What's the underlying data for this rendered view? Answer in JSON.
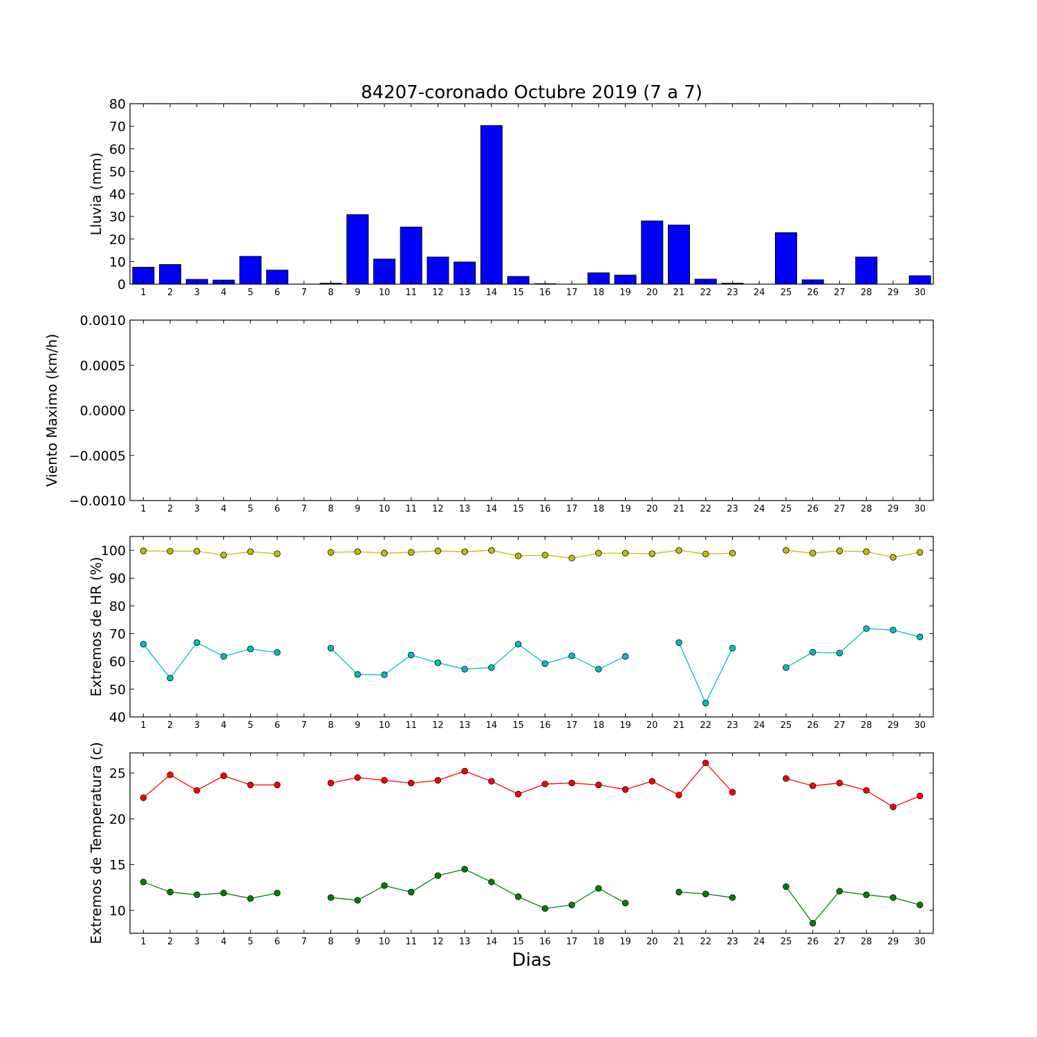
{
  "title": "84207-coronado Octubre 2019  (7 a 7)",
  "xlabel": "Dias",
  "chart_data": [
    {
      "type": "bar",
      "ylabel": "Lluvia (mm)",
      "ylim": [
        0,
        80
      ],
      "yticks": [
        "0",
        "10",
        "20",
        "30",
        "40",
        "50",
        "60",
        "70",
        "80"
      ],
      "categories": [
        1,
        2,
        3,
        4,
        5,
        6,
        7,
        8,
        9,
        10,
        11,
        12,
        13,
        14,
        15,
        16,
        17,
        18,
        19,
        20,
        21,
        22,
        23,
        24,
        25,
        26,
        27,
        28,
        29,
        30
      ],
      "values": [
        7.5,
        8.7,
        2.1,
        1.8,
        12.3,
        6.2,
        0,
        0.4,
        30.8,
        11.1,
        25.3,
        12,
        9.8,
        70.3,
        3.4,
        0.2,
        0,
        5,
        4,
        28,
        26.2,
        2.2,
        0.4,
        0,
        22.8,
        1.9,
        0,
        12,
        0,
        3.7
      ],
      "color": "#0000ff"
    },
    {
      "type": "line",
      "ylabel": "Viento Maximo (km/h)",
      "ylim": [
        -0.001,
        0.001
      ],
      "yticks": [
        "0.0010",
        "0.0005",
        "0.0000",
        "−0.0005",
        "−0.0010"
      ],
      "categories": [
        1,
        2,
        3,
        4,
        5,
        6,
        7,
        8,
        9,
        10,
        11,
        12,
        13,
        14,
        15,
        16,
        17,
        18,
        19,
        20,
        21,
        22,
        23,
        24,
        25,
        26,
        27,
        28,
        29,
        30
      ],
      "series": []
    },
    {
      "type": "line",
      "ylabel": "Extremos de HR (%)",
      "ylim": [
        40,
        105
      ],
      "yticks": [
        "40",
        "50",
        "60",
        "70",
        "80",
        "90",
        "100"
      ],
      "categories": [
        1,
        2,
        3,
        4,
        5,
        6,
        7,
        8,
        9,
        10,
        11,
        12,
        13,
        14,
        15,
        16,
        17,
        18,
        19,
        20,
        21,
        22,
        23,
        24,
        25,
        26,
        27,
        28,
        29,
        30
      ],
      "series": [
        {
          "color": "#bfbf00",
          "values": [
            99.8,
            99.7,
            99.7,
            98.3,
            99.5,
            98.8,
            null,
            99.3,
            99.5,
            99.0,
            99.3,
            99.8,
            99.5,
            100,
            98.0,
            98.3,
            97.2,
            99.0,
            99.0,
            98.8,
            100,
            98.7,
            99.0,
            null,
            100,
            99.0,
            99.8,
            99.5,
            97.5,
            99.3
          ]
        },
        {
          "color": "#00bfbf",
          "values": [
            66.2,
            54.0,
            66.8,
            61.8,
            64.5,
            63.2,
            null,
            64.8,
            55.3,
            55.2,
            62.3,
            59.5,
            57.2,
            57.8,
            66.2,
            59.2,
            62.0,
            57.2,
            61.8,
            null,
            66.8,
            45.0,
            64.8,
            null,
            57.8,
            63.3,
            63.0,
            71.8,
            71.3,
            68.8
          ]
        }
      ]
    },
    {
      "type": "line",
      "ylabel": "Extremos de Temperatura (c)",
      "ylim": [
        7.5,
        27.2
      ],
      "yticks": [
        "10",
        "15",
        "20",
        "25"
      ],
      "categories": [
        1,
        2,
        3,
        4,
        5,
        6,
        7,
        8,
        9,
        10,
        11,
        12,
        13,
        14,
        15,
        16,
        17,
        18,
        19,
        20,
        21,
        22,
        23,
        24,
        25,
        26,
        27,
        28,
        29,
        30
      ],
      "series": [
        {
          "color": "#ff0000",
          "values": [
            22.3,
            24.8,
            23.1,
            24.7,
            23.7,
            23.7,
            null,
            23.9,
            24.5,
            24.2,
            23.9,
            24.2,
            25.2,
            24.1,
            22.7,
            23.8,
            23.9,
            23.7,
            23.2,
            24.1,
            22.6,
            26.1,
            22.9,
            null,
            24.4,
            23.6,
            23.9,
            23.1,
            21.3,
            22.5
          ]
        },
        {
          "color": "#008000",
          "values": [
            13.1,
            12.0,
            11.7,
            11.9,
            11.3,
            11.9,
            null,
            11.4,
            11.1,
            12.7,
            12.0,
            13.8,
            14.5,
            13.1,
            11.5,
            10.2,
            10.6,
            12.4,
            10.8,
            null,
            12.0,
            11.8,
            11.4,
            null,
            12.6,
            8.6,
            12.1,
            11.7,
            11.4,
            10.6
          ]
        }
      ]
    }
  ]
}
